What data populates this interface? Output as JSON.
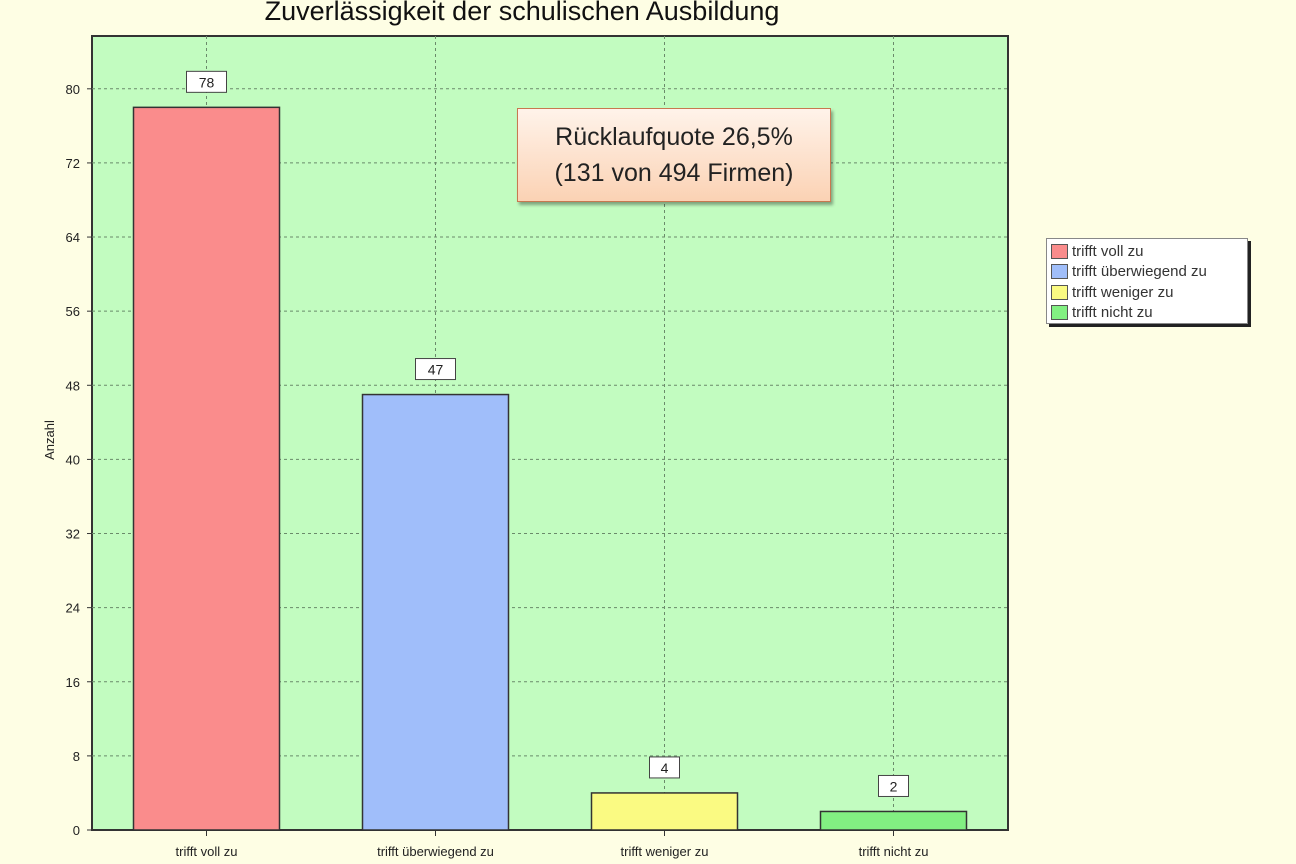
{
  "chart_data": {
    "type": "bar",
    "title": "Zuverlässigkeit der schulischen Ausbildung",
    "xlabel": "",
    "ylabel": "Anzahl",
    "categories": [
      "trifft voll zu",
      "trifft überwiegend zu",
      "trifft weniger zu",
      "trifft nicht zu"
    ],
    "values": [
      78,
      47,
      4,
      2
    ],
    "data_labels": [
      "78",
      "47",
      "4",
      "2"
    ],
    "colors": [
      "#fa8c8c",
      "#a0befa",
      "#fafa82",
      "#82f082"
    ],
    "ylim": [
      0,
      85.7
    ],
    "yticks": [
      0,
      8,
      16,
      24,
      32,
      40,
      48,
      56,
      64,
      72,
      80
    ],
    "grid": true,
    "legend_position": "right",
    "legend": [
      "trifft voll zu",
      "trifft überwiegend zu",
      "trifft weniger zu",
      "trifft nicht zu"
    ],
    "annotation": {
      "line1": "Rücklaufquote 26,5%",
      "line2": "(131 von 494 Firmen)"
    }
  }
}
